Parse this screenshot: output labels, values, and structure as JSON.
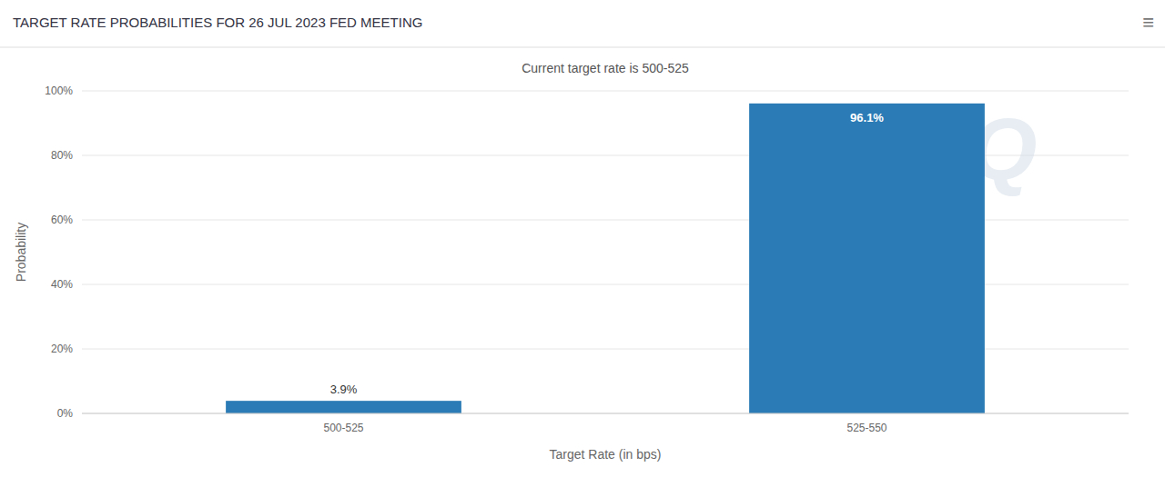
{
  "chart_data": {
    "type": "bar",
    "title": "TARGET RATE PROBABILITIES FOR 26 JUL 2023 FED MEETING",
    "subtitle": "Current target rate is 500-525",
    "categories": [
      "500-525",
      "525-550"
    ],
    "values": [
      3.9,
      96.1
    ],
    "value_labels": [
      "3.9%",
      "96.1%"
    ],
    "data_labels": true,
    "color": "#2b7cb6",
    "xlabel": "Target Rate (in bps)",
    "ylabel": "Probability",
    "ylim": [
      0,
      100
    ],
    "yticks": [
      {
        "value": 0,
        "label": "0%"
      },
      {
        "value": 20,
        "label": "20%"
      },
      {
        "value": 40,
        "label": "40%"
      },
      {
        "value": 60,
        "label": "60%"
      },
      {
        "value": 80,
        "label": "80%"
      },
      {
        "value": 100,
        "label": "100%"
      }
    ],
    "grid": true,
    "annotations": [
      "Q",
      "≡"
    ]
  }
}
